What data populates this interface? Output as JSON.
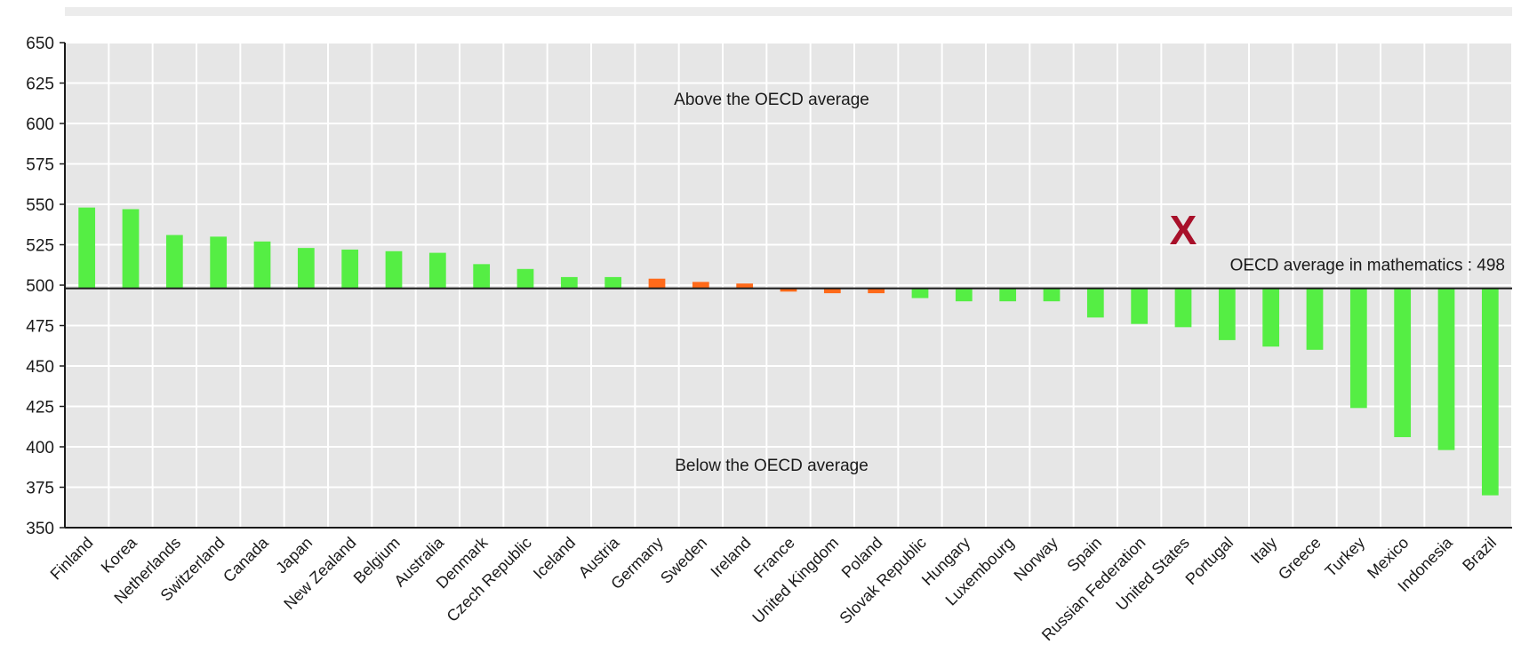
{
  "chart_data": {
    "type": "bar",
    "categories": [
      "Finland",
      "Korea",
      "Netherlands",
      "Switzerland",
      "Canada",
      "Japan",
      "New Zealand",
      "Belgium",
      "Australia",
      "Denmark",
      "Czech Republic",
      "Iceland",
      "Austria",
      "Germany",
      "Sweden",
      "Ireland",
      "France",
      "United Kingdom",
      "Poland",
      "Slovak Republic",
      "Hungary",
      "Luxembourg",
      "Norway",
      "Spain",
      "Russian Federation",
      "United States",
      "Portugal",
      "Italy",
      "Greece",
      "Turkey",
      "Mexico",
      "Indonesia",
      "Brazil"
    ],
    "values": [
      548,
      547,
      531,
      530,
      527,
      523,
      522,
      521,
      520,
      513,
      510,
      505,
      505,
      504,
      502,
      501,
      496,
      495,
      495,
      492,
      490,
      490,
      490,
      480,
      476,
      474,
      466,
      462,
      460,
      424,
      406,
      398,
      370
    ],
    "bar_colors": [
      "#55ee44",
      "#55ee44",
      "#55ee44",
      "#55ee44",
      "#55ee44",
      "#55ee44",
      "#55ee44",
      "#55ee44",
      "#55ee44",
      "#55ee44",
      "#55ee44",
      "#55ee44",
      "#55ee44",
      "#ff6a1a",
      "#ff6a1a",
      "#ff6a1a",
      "#ff6a1a",
      "#ff6a1a",
      "#ff6a1a",
      "#55ee44",
      "#55ee44",
      "#55ee44",
      "#55ee44",
      "#55ee44",
      "#55ee44",
      "#55ee44",
      "#55ee44",
      "#55ee44",
      "#55ee44",
      "#55ee44",
      "#55ee44",
      "#55ee44",
      "#55ee44"
    ],
    "baseline": 498,
    "ylim": [
      350,
      650
    ],
    "yticks": [
      350,
      375,
      400,
      425,
      450,
      475,
      500,
      525,
      550,
      575,
      600,
      625,
      650
    ],
    "grid": true,
    "annotations": {
      "above": "Above the OECD average",
      "below": "Below the OECD average",
      "average": "OECD average in mathematics : 498"
    },
    "marker": {
      "symbol": "X",
      "category": "United States",
      "value": 534,
      "color": "#a8102a"
    },
    "colors": {
      "plot_bg": "#e6e6e6",
      "grid": "#ffffff",
      "baseline": "#1a1a1a"
    }
  }
}
